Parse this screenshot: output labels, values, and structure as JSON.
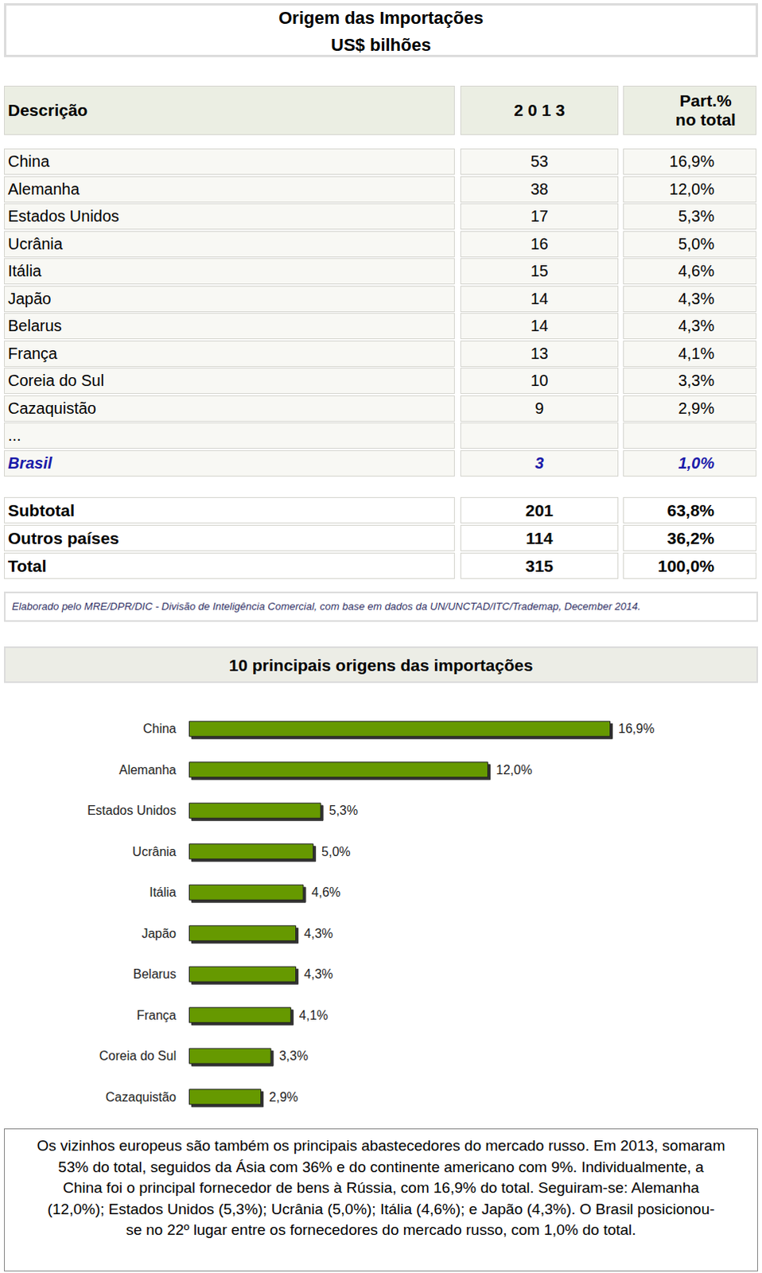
{
  "header": {
    "title": "Origem das Importações",
    "subtitle": "US$ bilhões"
  },
  "table": {
    "columns": [
      "Descrição",
      "2 0 1 3",
      [
        "Part.%",
        "no total"
      ]
    ],
    "rows": [
      [
        "China",
        53,
        "16,9%"
      ],
      [
        "Alemanha",
        38,
        "12,0%"
      ],
      [
        "Estados Unidos",
        17,
        "5,3%"
      ],
      [
        "Ucrânia",
        16,
        "5,0%"
      ],
      [
        "Itália",
        15,
        "4,6%"
      ],
      [
        "Japão",
        14,
        "4,3%"
      ],
      [
        "Belarus",
        14,
        "4,3%"
      ],
      [
        "França",
        13,
        "4,1%"
      ],
      [
        "Coreia do Sul",
        10,
        "3,3%"
      ],
      [
        "Cazaquistão",
        9,
        "2,9%"
      ]
    ],
    "ellipsis_row": "...",
    "highlight_row": [
      "Brasil",
      3,
      "1,0%"
    ],
    "total_rows": [
      [
        "Subtotal",
        201,
        "63,8%"
      ],
      [
        "Outros países",
        114,
        "36,2%"
      ],
      [
        "Total",
        315,
        "100,0%"
      ]
    ]
  },
  "footnote": "Elaborado pelo MRE/DPR/DIC - Divisão de Inteligência Comercial, com base em dados da UN/UNCTAD/ITC/Trademap, December 2014.",
  "chart_data": {
    "type": "bar",
    "title": "10 principais origens das importações",
    "orientation": "horizontal",
    "categories": [
      "China",
      "Alemanha",
      "Estados Unidos",
      "Ucrânia",
      "Itália",
      "Japão",
      "Belarus",
      "França",
      "Coreia do Sul",
      "Cazaquistão"
    ],
    "values": [
      16.9,
      12.0,
      5.3,
      5.0,
      4.6,
      4.3,
      4.3,
      4.1,
      3.3,
      2.9
    ],
    "value_labels": [
      "16,9%",
      "12,0%",
      "5,3%",
      "5,0%",
      "4,6%",
      "4,3%",
      "4,3%",
      "4,1%",
      "3,3%",
      "2,9%"
    ],
    "data_labels": true,
    "tick_labels": "y",
    "grid": false,
    "color": "#669900",
    "xlim": [
      0,
      16.9
    ]
  },
  "note_lines": [
    "Os vizinhos europeus são também os principais abastecedores do mercado russo. Em 2013, somaram",
    "53% do total, seguidos da Ásia com 36% e do continente americano com 9%. Individualmente, a",
    "China foi o principal fornecedor de bens à Rússia, com 16,9% do total. Seguiram-se: Alemanha",
    "(12,0%); Estados Unidos (5,3%); Ucrânia (5,0%); Itália (4,6%); e Japão (4,3%). O Brasil posicionou-",
    "se no 22º lugar entre os fornecedores do mercado russo, com 1,0% do total."
  ]
}
